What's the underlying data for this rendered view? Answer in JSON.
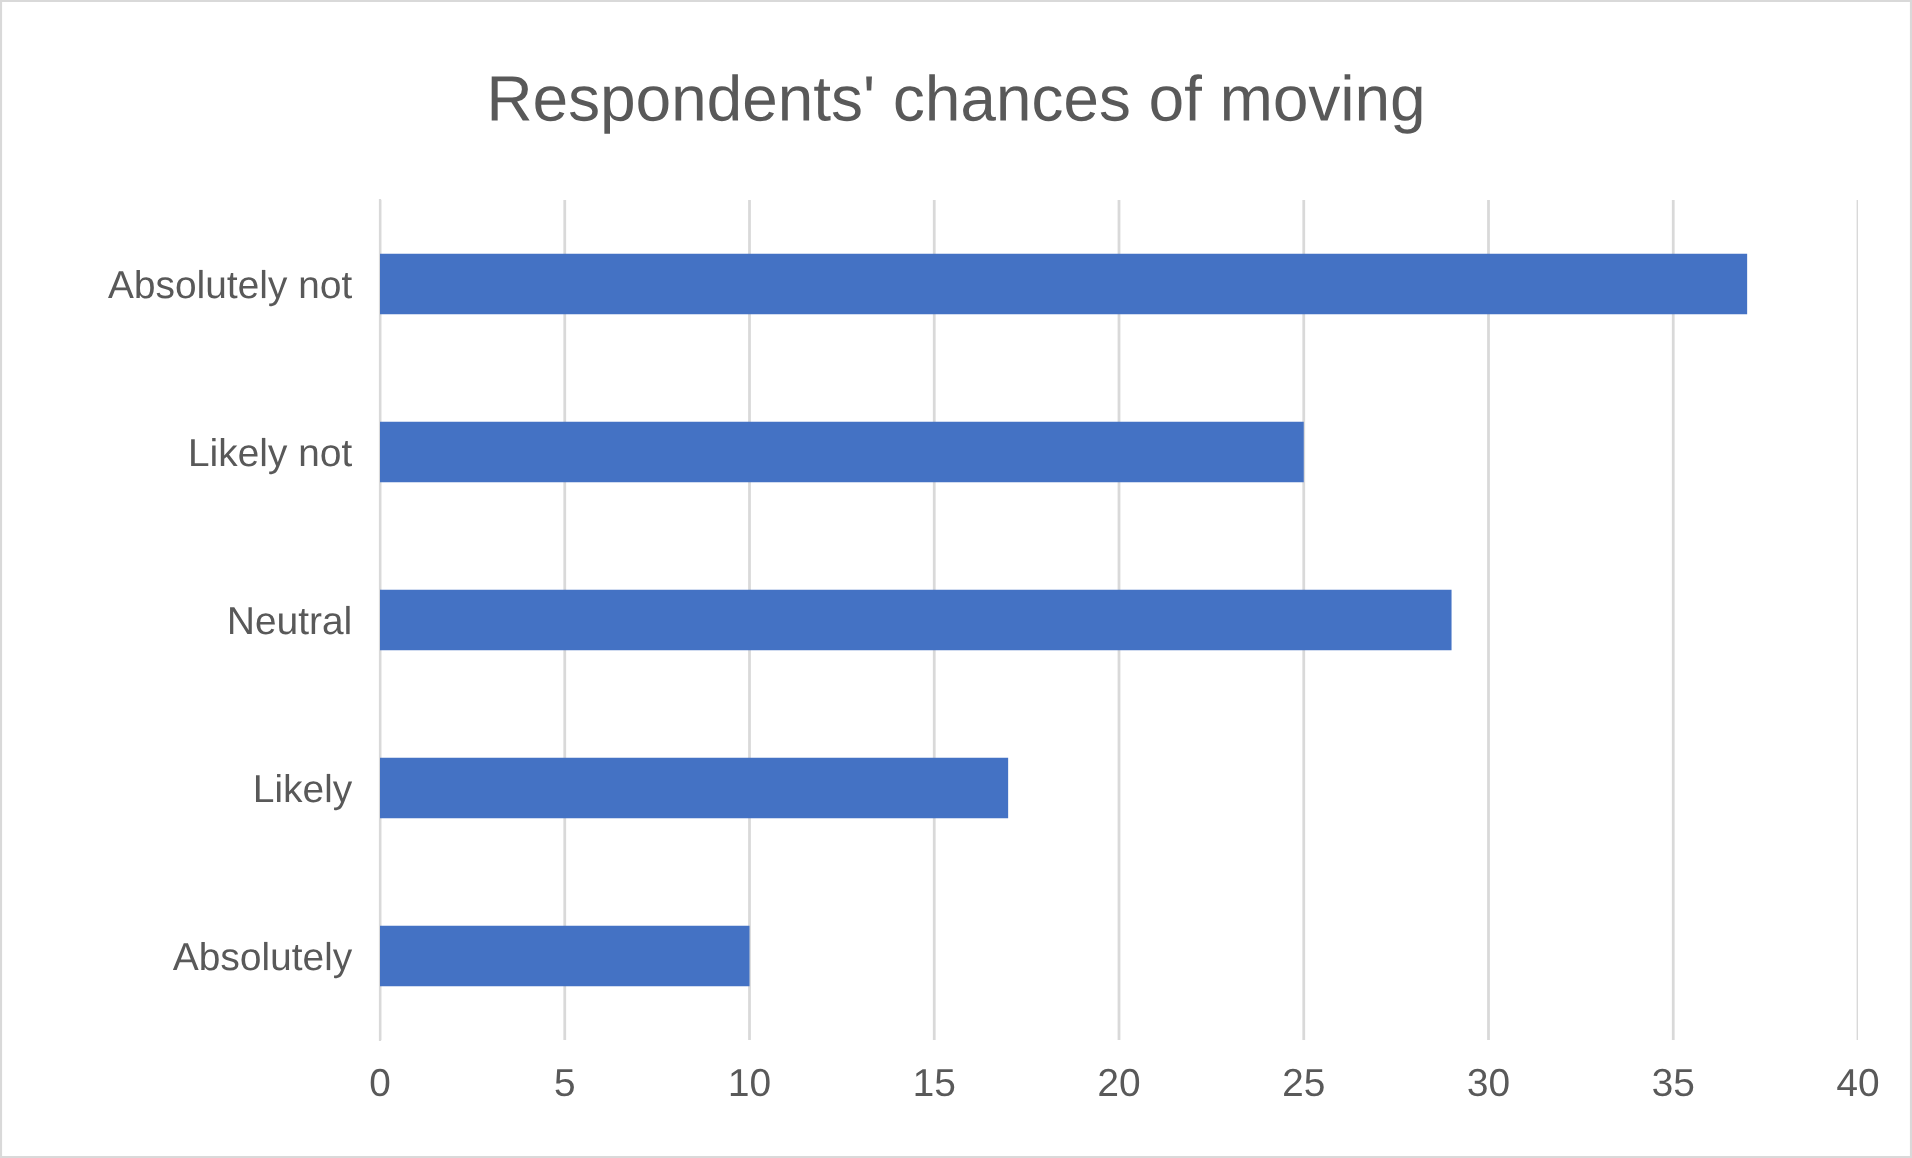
{
  "chart_data": {
    "type": "bar",
    "orientation": "horizontal",
    "title": "Respondents' chances of moving",
    "categories": [
      "Absolutely not",
      "Likely not",
      "Neutral",
      "Likely",
      "Absolutely"
    ],
    "values": [
      37,
      25,
      29,
      17,
      10
    ],
    "color": "#4472c4",
    "xlim": [
      0,
      40
    ],
    "xticks": [
      0,
      5,
      10,
      15,
      20,
      25,
      30,
      35,
      40
    ],
    "grid": "x"
  }
}
